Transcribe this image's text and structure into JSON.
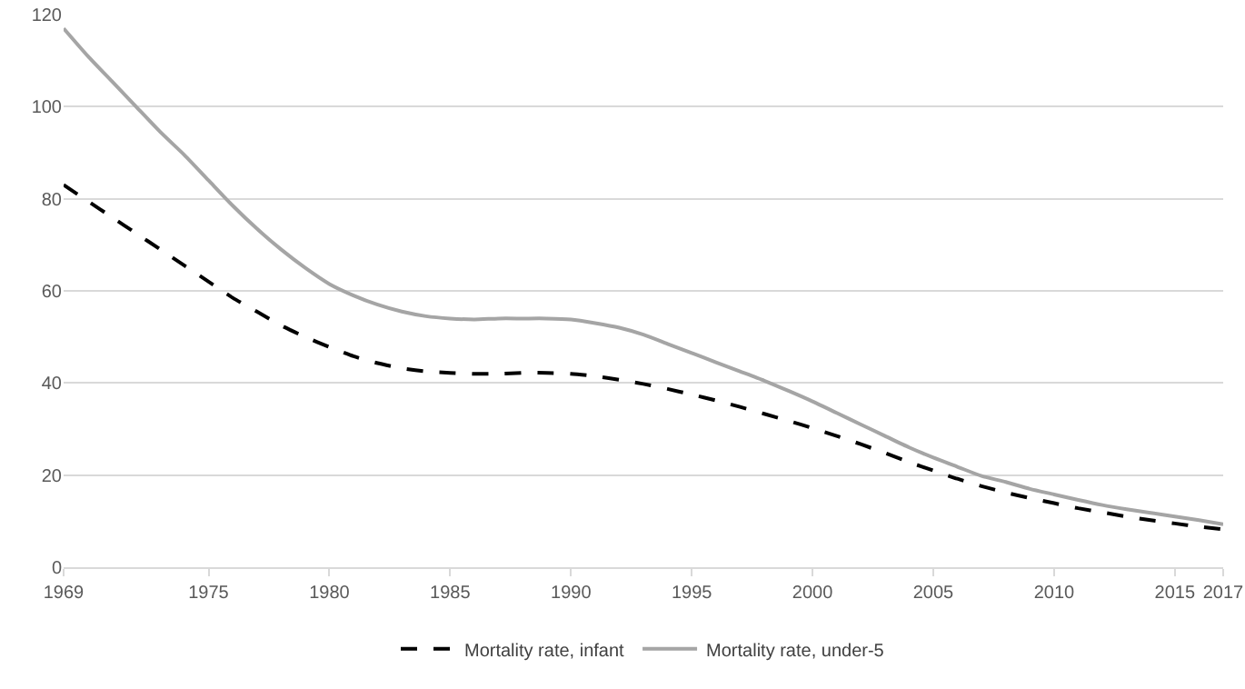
{
  "chart_data": {
    "type": "line",
    "x": [
      1969,
      1970,
      1971,
      1972,
      1973,
      1974,
      1975,
      1976,
      1977,
      1978,
      1979,
      1980,
      1981,
      1982,
      1983,
      1984,
      1985,
      1986,
      1987,
      1988,
      1989,
      1990,
      1991,
      1992,
      1993,
      1994,
      1995,
      1996,
      1997,
      1998,
      1999,
      2000,
      2001,
      2002,
      2003,
      2004,
      2005,
      2006,
      2007,
      2008,
      2009,
      2010,
      2011,
      2012,
      2013,
      2014,
      2015,
      2016,
      2017
    ],
    "series": [
      {
        "name": "Mortality rate, infant",
        "color": "#000000",
        "line_style": "dashed",
        "values": [
          83,
          79.5,
          76,
          72.5,
          69,
          65.5,
          62,
          58.5,
          55.5,
          52.5,
          50,
          47.8,
          45.8,
          44.3,
          43.2,
          42.5,
          42.2,
          42,
          42,
          42.2,
          42.2,
          42,
          41.5,
          40.7,
          39.8,
          38.7,
          37.5,
          36.2,
          34.8,
          33.3,
          31.8,
          30.2,
          28.5,
          26.7,
          24.8,
          22.8,
          21,
          19.2,
          17.6,
          16.2,
          15,
          13.9,
          12.8,
          11.9,
          11,
          10.2,
          9.5,
          8.8,
          8.2
        ]
      },
      {
        "name": "Mortality rate, under-5",
        "color": "#a5a5a5",
        "line_style": "solid",
        "values": [
          117,
          111,
          105.5,
          100,
          94.5,
          89.5,
          84,
          78.5,
          73.5,
          69,
          65,
          61.5,
          59,
          57,
          55.5,
          54.5,
          54,
          53.8,
          54,
          54,
          54,
          53.8,
          53,
          52,
          50.5,
          48.5,
          46.5,
          44.5,
          42.5,
          40.5,
          38.3,
          36,
          33.5,
          31,
          28.5,
          26,
          23.8,
          21.8,
          19.8,
          18.5,
          17,
          15.8,
          14.6,
          13.5,
          12.6,
          11.8,
          11,
          10.2,
          9.3
        ]
      }
    ],
    "xlim": [
      1969,
      2017
    ],
    "xticks": [
      1969,
      1975,
      1980,
      1985,
      1990,
      1995,
      2000,
      2005,
      2010,
      2015,
      2017
    ],
    "ylim": [
      0,
      120
    ],
    "yticks": [
      0,
      20,
      40,
      60,
      80,
      100,
      120
    ],
    "grid": "y",
    "legend": "bottom",
    "marker": "none"
  }
}
